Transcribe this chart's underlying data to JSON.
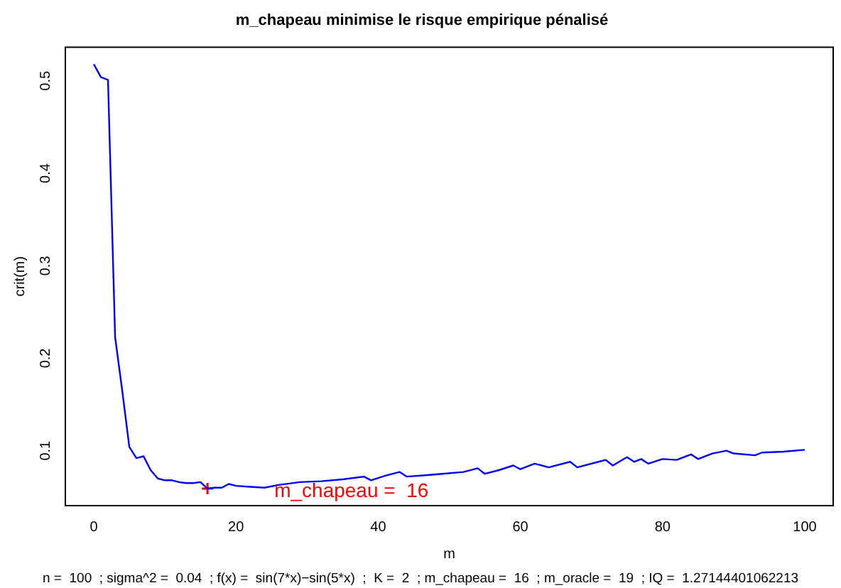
{
  "chart_data": {
    "type": "line",
    "title": "m_chapeau minimise le risque empirique pénalisé",
    "xlabel": "m",
    "ylabel": "crit(m)",
    "xlim": [
      -4,
      104
    ],
    "ylim": [
      0.0406,
      0.5364
    ],
    "xticks": [
      0,
      20,
      40,
      60,
      80,
      100
    ],
    "yticks": [
      0.1,
      0.2,
      0.3,
      0.4,
      0.5
    ],
    "grid": false,
    "legend": false,
    "marker": "none",
    "line_style": "solid",
    "series": [
      {
        "color": "#0000ff",
        "x": [
          0,
          1,
          2,
          3,
          4,
          5,
          6,
          7,
          8,
          9,
          10,
          11,
          12,
          13,
          14,
          15,
          16,
          17,
          18,
          19,
          20,
          22,
          24,
          26,
          29,
          32,
          35,
          38,
          39,
          41,
          43,
          44,
          46,
          49,
          52,
          54,
          55,
          57,
          59,
          60,
          62,
          64,
          67,
          68,
          71,
          72,
          73,
          75,
          76,
          77,
          78,
          80,
          82,
          84,
          85,
          87,
          89,
          90,
          93,
          94,
          97,
          100
        ],
        "values": [
          0.518,
          0.504,
          0.501,
          0.223,
          0.165,
          0.104,
          0.092,
          0.094,
          0.079,
          0.07,
          0.068,
          0.068,
          0.066,
          0.065,
          0.065,
          0.066,
          0.059,
          0.06,
          0.06,
          0.064,
          0.062,
          0.061,
          0.06,
          0.063,
          0.066,
          0.067,
          0.069,
          0.072,
          0.068,
          0.073,
          0.077,
          0.072,
          0.073,
          0.075,
          0.077,
          0.081,
          0.075,
          0.079,
          0.084,
          0.08,
          0.086,
          0.082,
          0.088,
          0.082,
          0.088,
          0.09,
          0.084,
          0.093,
          0.088,
          0.091,
          0.086,
          0.091,
          0.09,
          0.096,
          0.091,
          0.097,
          0.1,
          0.097,
          0.095,
          0.098,
          0.099,
          0.101
        ]
      },
      {
        "type": "scatter",
        "color": "#ff0000",
        "marker": "cross",
        "x": [
          16
        ],
        "values": [
          0.059
        ]
      }
    ],
    "annotations": [
      "m_chapeau =  16",
      "n =  100  ; sigma^2 =  0.04  ; f(x) =  sin(7*x)−sin(5*x)  ;  K =  2  ; m_chapeau =  16  ; m_oracle =  19  ; IQ =  1.27144401062213"
    ]
  }
}
